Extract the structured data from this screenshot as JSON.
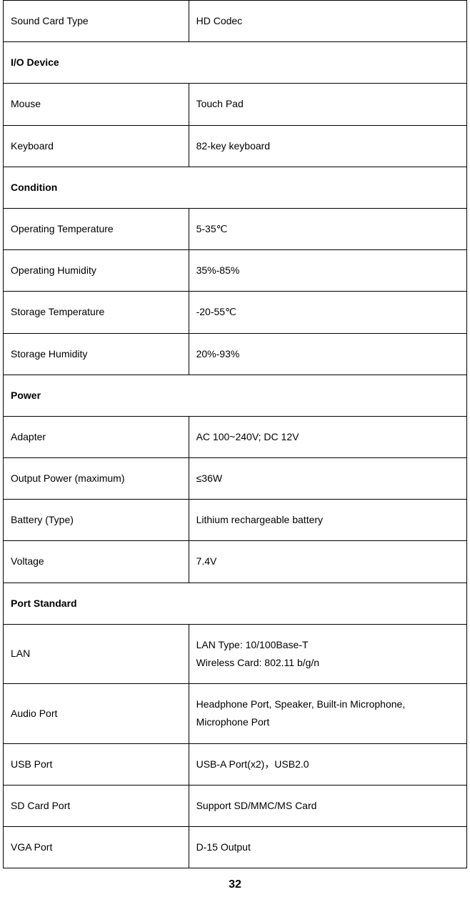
{
  "table": {
    "border_color": "#000000",
    "background_color": "#ffffff",
    "text_color": "#000000",
    "font_size_pt": 11,
    "section_font_weight": "bold",
    "col1_width_pct": 40,
    "col2_width_pct": 60,
    "rows": [
      {
        "type": "kv",
        "label": "Sound Card Type",
        "value": "HD Codec"
      },
      {
        "type": "section",
        "label": "I/O Device"
      },
      {
        "type": "kv",
        "label": "Mouse",
        "value": "Touch Pad"
      },
      {
        "type": "kv",
        "label": "Keyboard",
        "value": "82-key keyboard"
      },
      {
        "type": "section",
        "label": "Condition"
      },
      {
        "type": "kv",
        "label": "Operating Temperature",
        "value": "5-35℃"
      },
      {
        "type": "kv",
        "label": "Operating Humidity",
        "value": "35%-85%"
      },
      {
        "type": "kv",
        "label": "Storage Temperature",
        "value": "-20-55℃"
      },
      {
        "type": "kv",
        "label": "Storage Humidity",
        "value": "20%-93%"
      },
      {
        "type": "section",
        "label": "Power"
      },
      {
        "type": "kv",
        "label": "Adapter",
        "value": "AC 100~240V; DC 12V"
      },
      {
        "type": "kv",
        "label": "Output Power (maximum)",
        "value": "≤36W"
      },
      {
        "type": "kv",
        "label": "Battery (Type)",
        "value": "Lithium rechargeable battery"
      },
      {
        "type": "kv",
        "label": "Voltage",
        "value": "7.4V"
      },
      {
        "type": "section",
        "label": "Port Standard"
      },
      {
        "type": "kv",
        "label": "LAN",
        "value": "LAN Type: 10/100Base-T\nWireless Card: 802.11 b/g/n"
      },
      {
        "type": "kv",
        "label": "Audio Port",
        "value": "Headphone Port, Speaker, Built-in Microphone, Microphone Port"
      },
      {
        "type": "kv",
        "label": "USB Port",
        "value": "USB-A Port(x2)，USB2.0"
      },
      {
        "type": "kv",
        "label": "SD Card Port",
        "value": "Support SD/MMC/MS Card"
      },
      {
        "type": "kv",
        "label": "VGA Port",
        "value": "D-15 Output"
      }
    ]
  },
  "page_number": "32"
}
